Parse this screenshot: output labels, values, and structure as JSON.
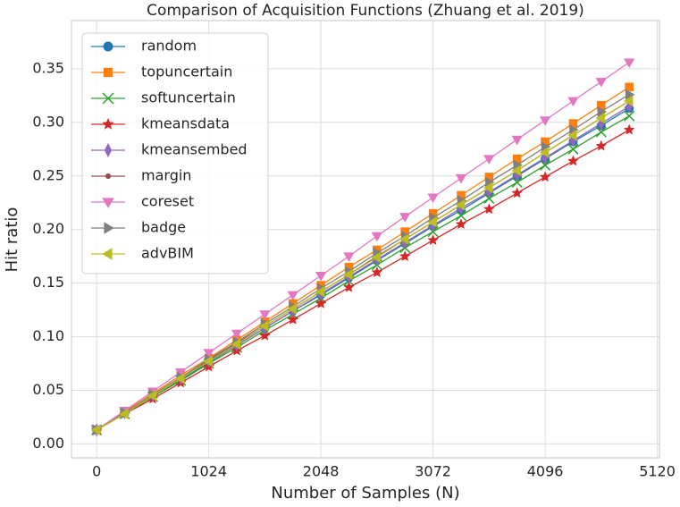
{
  "chart_data": {
    "type": "line",
    "title": "Comparison of Acquisition Functions (Zhuang et al. 2019)",
    "xlabel": "Number of Samples (N)",
    "ylabel": "Hit ratio",
    "x": [
      0,
      256,
      512,
      768,
      1024,
      1280,
      1536,
      1792,
      2048,
      2304,
      2560,
      2816,
      3072,
      3328,
      3584,
      3840,
      4096,
      4352,
      4608,
      4864
    ],
    "xlim": [
      -230,
      5140
    ],
    "xticks": [
      0,
      1024,
      2048,
      3072,
      4096,
      5120
    ],
    "ylim": [
      -0.013,
      0.395
    ],
    "yticks": [
      {
        "value": 0,
        "label": "0.00"
      },
      {
        "value": 0.05,
        "label": "0.05"
      },
      {
        "value": 0.1,
        "label": "0.10"
      },
      {
        "value": 0.15,
        "label": "0.15"
      },
      {
        "value": 0.2,
        "label": "0.20"
      },
      {
        "value": 0.25,
        "label": "0.25"
      },
      {
        "value": 0.3,
        "label": "0.30"
      },
      {
        "value": 0.35,
        "label": "0.35"
      }
    ],
    "grid": true,
    "legend": "upper left",
    "series": [
      {
        "name": "random",
        "color": "#1f77b4",
        "marker": "circle",
        "values": [
          0.013,
          0.029,
          0.045,
          0.06,
          0.076,
          0.092,
          0.108,
          0.124,
          0.139,
          0.155,
          0.171,
          0.187,
          0.203,
          0.218,
          0.234,
          0.25,
          0.266,
          0.282,
          0.297,
          0.313
        ]
      },
      {
        "name": "topuncertain",
        "color": "#ff7f0e",
        "marker": "square",
        "values": [
          0.013,
          0.03,
          0.047,
          0.064,
          0.08,
          0.097,
          0.114,
          0.131,
          0.148,
          0.165,
          0.181,
          0.198,
          0.215,
          0.232,
          0.249,
          0.266,
          0.282,
          0.299,
          0.316,
          0.333
        ]
      },
      {
        "name": "softuncertain",
        "color": "#2ca02c",
        "marker": "x",
        "values": [
          0.013,
          0.028,
          0.044,
          0.059,
          0.075,
          0.09,
          0.106,
          0.121,
          0.136,
          0.152,
          0.167,
          0.183,
          0.198,
          0.213,
          0.229,
          0.244,
          0.26,
          0.275,
          0.291,
          0.306
        ]
      },
      {
        "name": "kmeansdata",
        "color": "#d62728",
        "marker": "star",
        "values": [
          0.013,
          0.028,
          0.042,
          0.057,
          0.072,
          0.087,
          0.101,
          0.116,
          0.131,
          0.146,
          0.16,
          0.175,
          0.19,
          0.205,
          0.219,
          0.234,
          0.249,
          0.264,
          0.278,
          0.293
        ]
      },
      {
        "name": "kmeansembed",
        "color": "#9467bd",
        "marker": "diamond",
        "values": [
          0.013,
          0.029,
          0.045,
          0.061,
          0.077,
          0.092,
          0.108,
          0.124,
          0.14,
          0.156,
          0.172,
          0.188,
          0.204,
          0.22,
          0.235,
          0.251,
          0.267,
          0.283,
          0.299,
          0.315
        ]
      },
      {
        "name": "margin",
        "color": "#8c564b",
        "marker": "dot",
        "values": [
          0.013,
          0.029,
          0.045,
          0.061,
          0.078,
          0.094,
          0.11,
          0.126,
          0.142,
          0.158,
          0.175,
          0.191,
          0.207,
          0.223,
          0.239,
          0.255,
          0.272,
          0.288,
          0.304,
          0.32
        ]
      },
      {
        "name": "coreset",
        "color": "#e377c2",
        "marker": "tri-down",
        "values": [
          0.013,
          0.031,
          0.049,
          0.067,
          0.085,
          0.103,
          0.121,
          0.139,
          0.157,
          0.175,
          0.194,
          0.212,
          0.23,
          0.248,
          0.266,
          0.284,
          0.302,
          0.32,
          0.338,
          0.356
        ]
      },
      {
        "name": "badge",
        "color": "#7f7f7f",
        "marker": "tri-right",
        "values": [
          0.013,
          0.029,
          0.046,
          0.062,
          0.079,
          0.095,
          0.112,
          0.128,
          0.145,
          0.161,
          0.178,
          0.194,
          0.211,
          0.227,
          0.244,
          0.26,
          0.277,
          0.293,
          0.31,
          0.326
        ]
      },
      {
        "name": "advBIM",
        "color": "#bcbd22",
        "marker": "tri-left",
        "values": [
          0.013,
          0.028,
          0.045,
          0.061,
          0.077,
          0.093,
          0.11,
          0.126,
          0.142,
          0.158,
          0.174,
          0.191,
          0.207,
          0.223,
          0.239,
          0.255,
          0.272,
          0.288,
          0.304,
          0.32
        ]
      }
    ]
  }
}
